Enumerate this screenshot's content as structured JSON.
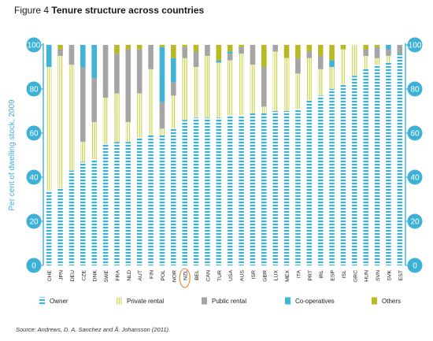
{
  "figure": {
    "prefix": "Figure 4",
    "title": "Tenure structure across countries",
    "source": "Source: Andrews, D. A. Sanchez and Å. Johansson (2011)."
  },
  "chart_data": {
    "type": "bar",
    "stacked": true,
    "ylabel": "Per cent of dwelling stock, 2009",
    "ylim": [
      0,
      100
    ],
    "yticks": [
      0,
      20,
      40,
      60,
      80,
      100
    ],
    "highlighted_category": "NZL",
    "categories": [
      "CHE",
      "JPN",
      "DEU",
      "CZE",
      "DNK",
      "SWE",
      "FRA",
      "NLD",
      "AUT",
      "FIN",
      "POL",
      "NOR",
      "NZL",
      "BEL",
      "CAN",
      "TUR",
      "USA",
      "AUS",
      "ISR",
      "GBR",
      "LUX",
      "MEX",
      "ITA",
      "PRT",
      "IRL",
      "ESP",
      "ISL",
      "GRC",
      "HUN",
      "SVN",
      "SVK",
      "EST"
    ],
    "series": [
      {
        "name": "Owner",
        "color": "#3eb1d6",
        "pattern": "dash",
        "values": [
          34,
          35,
          43,
          47,
          48,
          55,
          56,
          56,
          58,
          59,
          59,
          62,
          66,
          67,
          67,
          67,
          68,
          68,
          69,
          69,
          70,
          70,
          71,
          75,
          77,
          80,
          82,
          86,
          89,
          91,
          92,
          96
        ]
      },
      {
        "name": "Private rental",
        "color": "#d2d94a",
        "pattern": "stripe",
        "values": [
          56,
          60,
          48,
          9,
          17,
          21,
          22,
          9,
          20,
          30,
          3,
          15,
          28,
          23,
          28,
          25,
          25,
          28,
          22,
          3,
          27,
          24,
          16,
          19,
          12,
          10,
          16,
          14,
          6,
          3,
          3,
          0
        ]
      },
      {
        "name": "Public rental",
        "color": "#a5a5a5",
        "pattern": "solid",
        "values": [
          0,
          3,
          9,
          34,
          20,
          24,
          18,
          33,
          20,
          11,
          12,
          6,
          5,
          7,
          5,
          0,
          3,
          3,
          9,
          18,
          3,
          0,
          7,
          3,
          6,
          0,
          0,
          0,
          3,
          5,
          3,
          4
        ]
      },
      {
        "name": "Co-operatives",
        "color": "#40b3d9",
        "pattern": "solid",
        "values": [
          10,
          0,
          0,
          10,
          15,
          0,
          0,
          0,
          0,
          0,
          25,
          11,
          0,
          0,
          0,
          1,
          1,
          0,
          0,
          0,
          0,
          0,
          0,
          0,
          0,
          3,
          0,
          0,
          0,
          0,
          2,
          0
        ]
      },
      {
        "name": "Others",
        "color": "#b7bb21",
        "pattern": "solid",
        "values": [
          0,
          2,
          0,
          0,
          0,
          0,
          4,
          2,
          2,
          0,
          1,
          6,
          1,
          3,
          0,
          7,
          3,
          1,
          0,
          10,
          0,
          6,
          6,
          3,
          5,
          7,
          2,
          0,
          2,
          1,
          0,
          0
        ]
      }
    ]
  }
}
